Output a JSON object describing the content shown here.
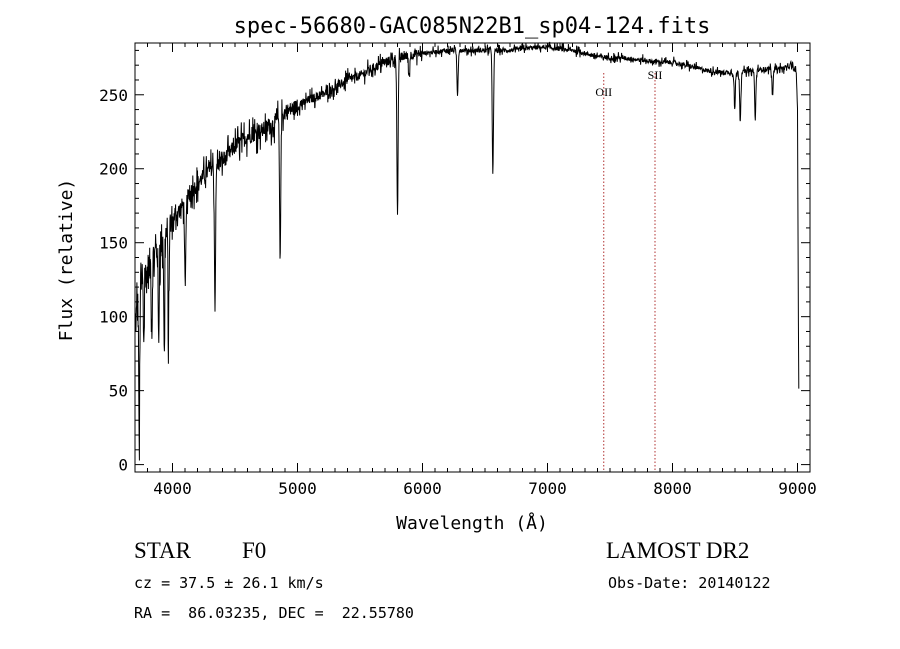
{
  "chart_data": {
    "type": "line",
    "title": "spec-56680-GAC085N22B1_sp04-124.fits",
    "xlabel": "Wavelength (Å)",
    "ylabel": "Flux (relative)",
    "xlim": [
      3700,
      9100
    ],
    "ylim": [
      -5,
      285
    ],
    "xticks": [
      4000,
      5000,
      6000,
      7000,
      8000,
      9000
    ],
    "yticks": [
      0,
      50,
      100,
      150,
      200,
      250
    ],
    "grid": false,
    "line_color": "#000000",
    "continuum": [
      [
        3700,
        95
      ],
      [
        3750,
        120
      ],
      [
        3800,
        130
      ],
      [
        3850,
        140
      ],
      [
        3900,
        150
      ],
      [
        3950,
        155
      ],
      [
        4000,
        165
      ],
      [
        4100,
        178
      ],
      [
        4200,
        190
      ],
      [
        4300,
        200
      ],
      [
        4400,
        205
      ],
      [
        4500,
        215
      ],
      [
        4600,
        222
      ],
      [
        4700,
        225
      ],
      [
        4800,
        230
      ],
      [
        4900,
        238
      ],
      [
        5000,
        242
      ],
      [
        5100,
        247
      ],
      [
        5200,
        250
      ],
      [
        5300,
        255
      ],
      [
        5400,
        260
      ],
      [
        5500,
        263
      ],
      [
        5600,
        268
      ],
      [
        5700,
        272
      ],
      [
        5800,
        275
      ],
      [
        5900,
        277
      ],
      [
        6000,
        278
      ],
      [
        6100,
        279
      ],
      [
        6200,
        280
      ],
      [
        6300,
        280
      ],
      [
        6400,
        280
      ],
      [
        6500,
        280
      ],
      [
        6600,
        280
      ],
      [
        6700,
        280
      ],
      [
        6800,
        281
      ],
      [
        6900,
        282
      ],
      [
        7000,
        282
      ],
      [
        7100,
        281
      ],
      [
        7200,
        280
      ],
      [
        7300,
        278
      ],
      [
        7400,
        276
      ],
      [
        7500,
        275
      ],
      [
        7600,
        275
      ],
      [
        7700,
        274
      ],
      [
        7800,
        273
      ],
      [
        7900,
        272
      ],
      [
        8000,
        272
      ],
      [
        8100,
        270
      ],
      [
        8200,
        268
      ],
      [
        8300,
        266
      ],
      [
        8400,
        265
      ],
      [
        8500,
        265
      ],
      [
        8600,
        266
      ],
      [
        8700,
        267
      ],
      [
        8800,
        268
      ],
      [
        8900,
        268
      ],
      [
        8950,
        270
      ],
      [
        8990,
        265
      ],
      [
        9000,
        240
      ],
      [
        9010,
        50
      ]
    ],
    "absorption_lines": [
      {
        "x": 3734,
        "y": 0
      },
      {
        "x": 3770,
        "y": 85
      },
      {
        "x": 3835,
        "y": 90
      },
      {
        "x": 3889,
        "y": 80
      },
      {
        "x": 3934,
        "y": 68
      },
      {
        "x": 3968,
        "y": 70
      },
      {
        "x": 4102,
        "y": 118
      },
      {
        "x": 4340,
        "y": 108
      },
      {
        "x": 4861,
        "y": 140
      },
      {
        "x": 5800,
        "y": 168
      },
      {
        "x": 5892,
        "y": 262
      },
      {
        "x": 6280,
        "y": 250
      },
      {
        "x": 6563,
        "y": 195
      },
      {
        "x": 8498,
        "y": 240
      },
      {
        "x": 8542,
        "y": 233
      },
      {
        "x": 8662,
        "y": 233
      },
      {
        "x": 8800,
        "y": 248
      }
    ],
    "annotations": [
      {
        "label": "OII",
        "x": 7450
      },
      {
        "label": "SII",
        "x": 7860
      }
    ],
    "marker_color": "#b03030"
  },
  "info": {
    "object_class": "STAR",
    "subclass": "F0",
    "survey": "LAMOST DR2",
    "cz": "cz = 37.5 ± 26.1 km/s",
    "obs_date": "Obs-Date: 20140122",
    "coords": "RA =  86.03235, DEC =  22.55780"
  }
}
